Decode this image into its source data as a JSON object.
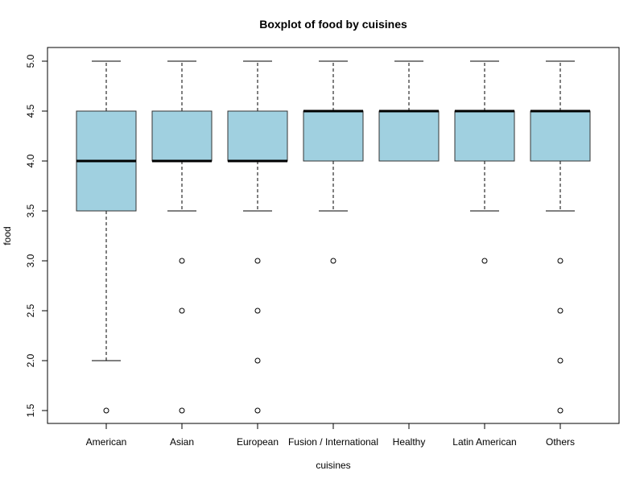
{
  "chart_data": {
    "type": "boxplot",
    "title": "Boxplot of food by cuisines",
    "xlabel": "cuisines",
    "ylabel": "food",
    "ylim": [
      1.4,
      5.1
    ],
    "yticks": [
      "1.5",
      "2.0",
      "2.5",
      "3.0",
      "3.5",
      "4.0",
      "4.5",
      "5.0"
    ],
    "box_color": "#a0d0e0",
    "categories": [
      "American",
      "Asian",
      "European",
      "Fusion / International",
      "Healthy",
      "Latin American",
      "Others"
    ],
    "boxes": [
      {
        "whisker_low": 2.0,
        "q1": 3.5,
        "median": 4.0,
        "q3": 4.5,
        "whisker_high": 5.0,
        "outliers": [
          1.5
        ]
      },
      {
        "whisker_low": 3.5,
        "q1": 4.0,
        "median": 4.0,
        "q3": 4.5,
        "whisker_high": 5.0,
        "outliers": [
          3.0,
          2.5,
          1.5
        ]
      },
      {
        "whisker_low": 3.5,
        "q1": 4.0,
        "median": 4.0,
        "q3": 4.5,
        "whisker_high": 5.0,
        "outliers": [
          3.0,
          2.5,
          2.0,
          1.5
        ]
      },
      {
        "whisker_low": 3.5,
        "q1": 4.0,
        "median": 4.5,
        "q3": 4.5,
        "whisker_high": 5.0,
        "outliers": [
          3.0
        ]
      },
      {
        "whisker_low": 4.0,
        "q1": 4.0,
        "median": 4.5,
        "q3": 4.5,
        "whisker_high": 5.0,
        "outliers": []
      },
      {
        "whisker_low": 3.5,
        "q1": 4.0,
        "median": 4.5,
        "q3": 4.5,
        "whisker_high": 5.0,
        "outliers": [
          3.0
        ]
      },
      {
        "whisker_low": 3.5,
        "q1": 4.0,
        "median": 4.5,
        "q3": 4.5,
        "whisker_high": 5.0,
        "outliers": [
          3.0,
          2.5,
          2.0,
          1.5
        ]
      }
    ]
  }
}
